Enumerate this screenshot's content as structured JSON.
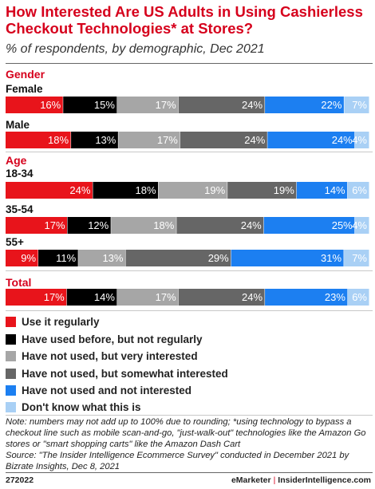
{
  "chart_data": {
    "type": "bar",
    "title": "How Interested Are US Adults in Using Cashierless Checkout Technologies* at Stores?",
    "subtitle": "% of respondents, by demographic, Dec 2021",
    "orientation": "horizontal",
    "stacked": true,
    "groups": [
      {
        "name": "Gender",
        "rows": [
          {
            "label": "Female",
            "values": [
              16,
              15,
              17,
              24,
              22,
              7
            ]
          },
          {
            "label": "Male",
            "values": [
              18,
              13,
              17,
              24,
              24,
              4
            ]
          }
        ]
      },
      {
        "name": "Age",
        "rows": [
          {
            "label": "18-34",
            "values": [
              24,
              18,
              19,
              19,
              14,
              6
            ]
          },
          {
            "label": "35-54",
            "values": [
              17,
              12,
              18,
              24,
              25,
              4
            ]
          },
          {
            "label": "55+",
            "values": [
              9,
              11,
              13,
              29,
              31,
              7
            ]
          }
        ]
      },
      {
        "name": "Total",
        "rows": [
          {
            "label": "",
            "values": [
              17,
              14,
              17,
              24,
              23,
              6
            ]
          }
        ]
      }
    ],
    "series": [
      {
        "name": "Use it regularly",
        "color": "#e8141b",
        "label_color": "#ffffff"
      },
      {
        "name": "Have used before, but not regularly",
        "color": "#000000",
        "label_color": "#ffffff"
      },
      {
        "name": "Have not used, but very interested",
        "color": "#a6a6a6",
        "label_color": "#ffffff"
      },
      {
        "name": "Have not used, but somewhat interested",
        "color": "#666666",
        "label_color": "#ffffff"
      },
      {
        "name": "Have not used and not interested",
        "color": "#1c7ff1",
        "label_color": "#ffffff"
      },
      {
        "name": "Don't know what this is",
        "color": "#a9d0f5",
        "label_color": "#ffffff"
      }
    ],
    "value_suffix": "%",
    "legend_position": "bottom",
    "grid": false
  },
  "note": "Note: numbers may not add up to 100% due to rounding; *using technology to bypass a checkout line such as mobile scan-and-go, \"just-walk-out\" technologies like the Amazon Go stores or \"smart shopping carts\" like the Amazon Dash Cart",
  "source": "Source: \"The Insider Intelligence Ecommerce Survey\" conducted in December 2021 by Bizrate Insights, Dec 8, 2021",
  "footer": {
    "chart_id": "272022",
    "brand_left": "eMarketer",
    "brand_sep": "|",
    "brand_right": "InsiderIntelligence.com"
  }
}
